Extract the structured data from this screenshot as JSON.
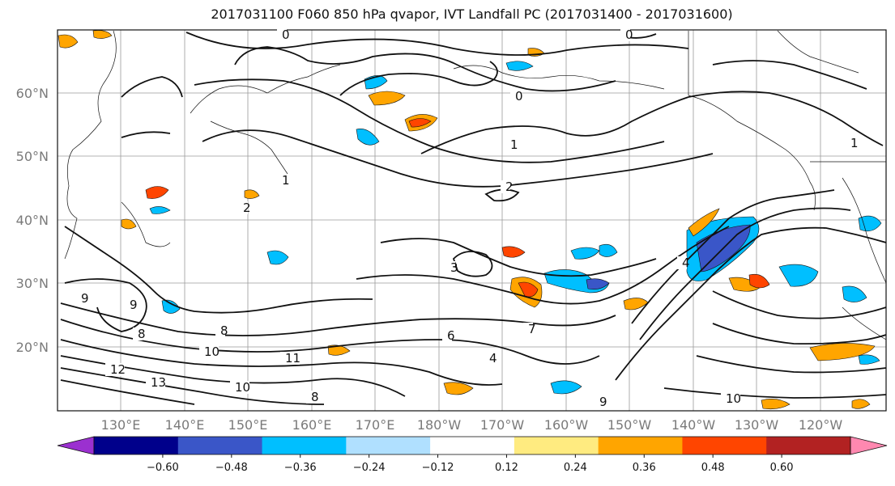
{
  "title": "2017031100 F060 850 hPa qvapor, IVT Landfall PC (2017031400 - 2017031600)",
  "map": {
    "lat_labels": [
      "60°N",
      "50°N",
      "40°N",
      "30°N",
      "20°N"
    ],
    "lon_labels": [
      "130°E",
      "140°E",
      "150°E",
      "160°E",
      "170°E",
      "180°W",
      "170°W",
      "160°W",
      "150°W",
      "140°W",
      "130°W",
      "120°W"
    ],
    "contour_labels": [
      "0",
      "2",
      "1",
      "1",
      "0",
      "2",
      "3",
      "0",
      "8",
      "9",
      "8",
      "10",
      "12",
      "13",
      "9",
      "10",
      "11",
      "8",
      "6",
      "4",
      "1",
      "9",
      "10",
      "4",
      "7"
    ]
  },
  "colorbar": {
    "tick_labels": [
      "−0.60",
      "−0.48",
      "−0.36",
      "−0.24",
      "−0.12",
      "0.12",
      "0.24",
      "0.36",
      "0.48",
      "0.60"
    ],
    "colors": [
      "#9b30d0",
      "#00008b",
      "#3a56c8",
      "#00bfff",
      "#b0e0ff",
      "#ffffff",
      "#ffeb80",
      "#ffa500",
      "#ff4500",
      "#b22222",
      "#ff88b0"
    ]
  }
}
